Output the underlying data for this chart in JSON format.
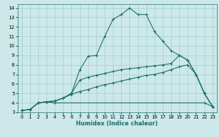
{
  "title": "",
  "xlabel": "Humidex (Indice chaleur)",
  "xlim": [
    -0.5,
    23.5
  ],
  "ylim": [
    3,
    14.4
  ],
  "xticks": [
    0,
    1,
    2,
    3,
    4,
    5,
    6,
    7,
    8,
    9,
    10,
    11,
    12,
    13,
    14,
    15,
    16,
    17,
    18,
    19,
    20,
    21,
    22,
    23
  ],
  "yticks": [
    3,
    4,
    5,
    6,
    7,
    8,
    9,
    10,
    11,
    12,
    13,
    14
  ],
  "bg_color": "#cce8e8",
  "line_color": "#1a6b6b",
  "grid_color": "#aed4d4",
  "curve1_x": [
    0,
    1,
    2,
    3,
    4,
    5,
    6,
    7,
    8,
    9,
    10,
    11,
    12,
    13,
    14,
    15,
    16,
    17,
    18,
    19,
    20,
    21,
    22,
    23
  ],
  "curve1_y": [
    3.2,
    3.3,
    4.0,
    4.1,
    4.2,
    4.5,
    5.0,
    7.5,
    8.9,
    9.0,
    11.0,
    12.8,
    13.3,
    14.0,
    13.3,
    13.3,
    11.5,
    10.5,
    9.5,
    9.0,
    8.5,
    7.0,
    5.0,
    3.6
  ],
  "curve2_x": [
    0,
    1,
    2,
    3,
    4,
    5,
    6,
    7,
    8,
    9,
    10,
    11,
    12,
    13,
    14,
    15,
    16,
    17,
    18,
    19,
    20,
    21,
    22,
    23
  ],
  "curve2_y": [
    3.2,
    3.3,
    4.0,
    4.1,
    4.2,
    4.5,
    5.0,
    6.4,
    6.7,
    6.9,
    7.1,
    7.3,
    7.5,
    7.6,
    7.7,
    7.8,
    7.9,
    8.0,
    8.15,
    9.0,
    8.5,
    7.0,
    5.0,
    3.6
  ],
  "curve3_x": [
    0,
    1,
    2,
    3,
    4,
    5,
    6,
    7,
    8,
    9,
    10,
    11,
    12,
    13,
    14,
    15,
    16,
    17,
    18,
    19,
    20,
    21,
    22,
    23
  ],
  "curve3_y": [
    3.2,
    3.3,
    4.0,
    4.1,
    4.2,
    4.5,
    4.9,
    5.2,
    5.4,
    5.7,
    5.9,
    6.1,
    6.3,
    6.5,
    6.7,
    6.9,
    7.0,
    7.2,
    7.5,
    7.8,
    8.0,
    7.0,
    5.0,
    3.6
  ],
  "curve4_x": [
    0,
    1,
    2,
    3,
    4,
    22,
    23
  ],
  "curve4_y": [
    3.2,
    3.3,
    4.0,
    4.1,
    4.0,
    4.0,
    3.6
  ]
}
